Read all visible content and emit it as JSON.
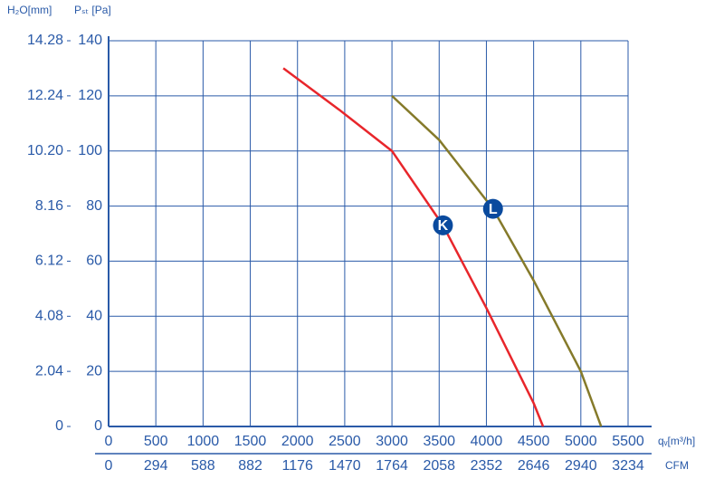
{
  "chart_data": {
    "type": "line",
    "y_label": "Pₛₜ [Pa]",
    "y2_label": "H₂O[mm]",
    "x_label": "qᵥ[m³/h]",
    "x2_label": "CFM",
    "xlim": [
      0,
      5500
    ],
    "xticks": [
      0,
      500,
      1000,
      1500,
      2000,
      2500,
      3000,
      3500,
      4000,
      4500,
      5000,
      5500
    ],
    "ylim": [
      0,
      140
    ],
    "yticks": [
      0,
      20,
      40,
      60,
      80,
      100,
      120,
      140
    ],
    "y2lim": [
      0,
      14.28
    ],
    "y2ticks": [
      0,
      2.04,
      4.08,
      6.12,
      8.16,
      {
        "value": 10.2,
        "label": "10.20"
      },
      12.24,
      14.28
    ],
    "x2lim": [
      0,
      3234
    ],
    "x2ticks": [
      0,
      294,
      588,
      882,
      1176,
      1470,
      1764,
      2058,
      2352,
      2646,
      2940,
      3234
    ],
    "grid": true,
    "series": [
      {
        "name": "K",
        "color": "#e8262b",
        "x": [
          1850,
          2440,
          3000,
          3540,
          4000,
          4500,
          4600
        ],
        "values": [
          130,
          115,
          100,
          73,
          43,
          8.5,
          0
        ],
        "marker": {
          "x": 3540,
          "y": 73
        }
      },
      {
        "name": "L",
        "color": "#857a2a",
        "x": [
          3000,
          3500,
          4070,
          4500,
          5000,
          5215
        ],
        "values": [
          120,
          104,
          79,
          53,
          20,
          0
        ],
        "marker": {
          "x": 4070,
          "y": 79
        }
      }
    ]
  }
}
